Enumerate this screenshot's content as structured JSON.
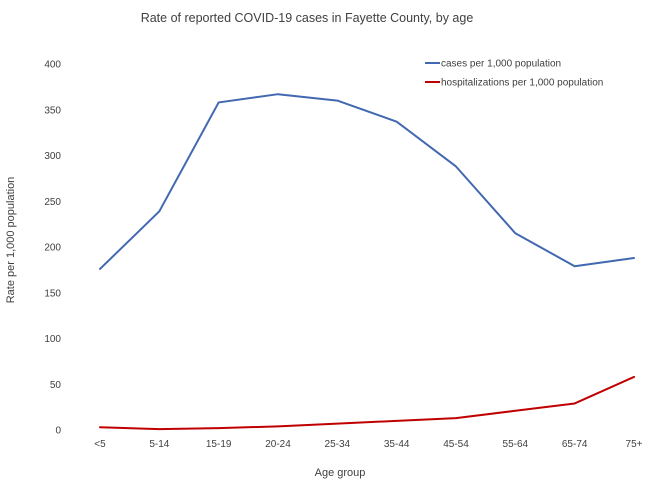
{
  "chart_data": {
    "type": "line",
    "title": "Rate of reported COVID-19 cases in Fayette County, by age",
    "xlabel": "Age group",
    "ylabel": "Rate per 1,000 population",
    "ylim": [
      0,
      400
    ],
    "yticks": [
      "0",
      "50",
      "100",
      "150",
      "200",
      "250",
      "300",
      "350",
      "400"
    ],
    "categories": [
      "<5",
      "5-14",
      "15-19",
      "20-24",
      "25-34",
      "35-44",
      "45-54",
      "55-64",
      "65-74",
      "75+"
    ],
    "grid": false,
    "legend_position": "top-right",
    "series": [
      {
        "name": "cases per 1,000 population",
        "color": "#4168b0",
        "values": [
          176,
          239,
          358,
          367,
          360,
          337,
          288,
          215,
          179,
          188
        ]
      },
      {
        "name": "hospitalizations per 1,000 population",
        "color": "#c00000",
        "values": [
          3,
          1,
          2,
          4,
          7,
          10,
          13,
          21,
          29,
          58
        ]
      }
    ]
  }
}
